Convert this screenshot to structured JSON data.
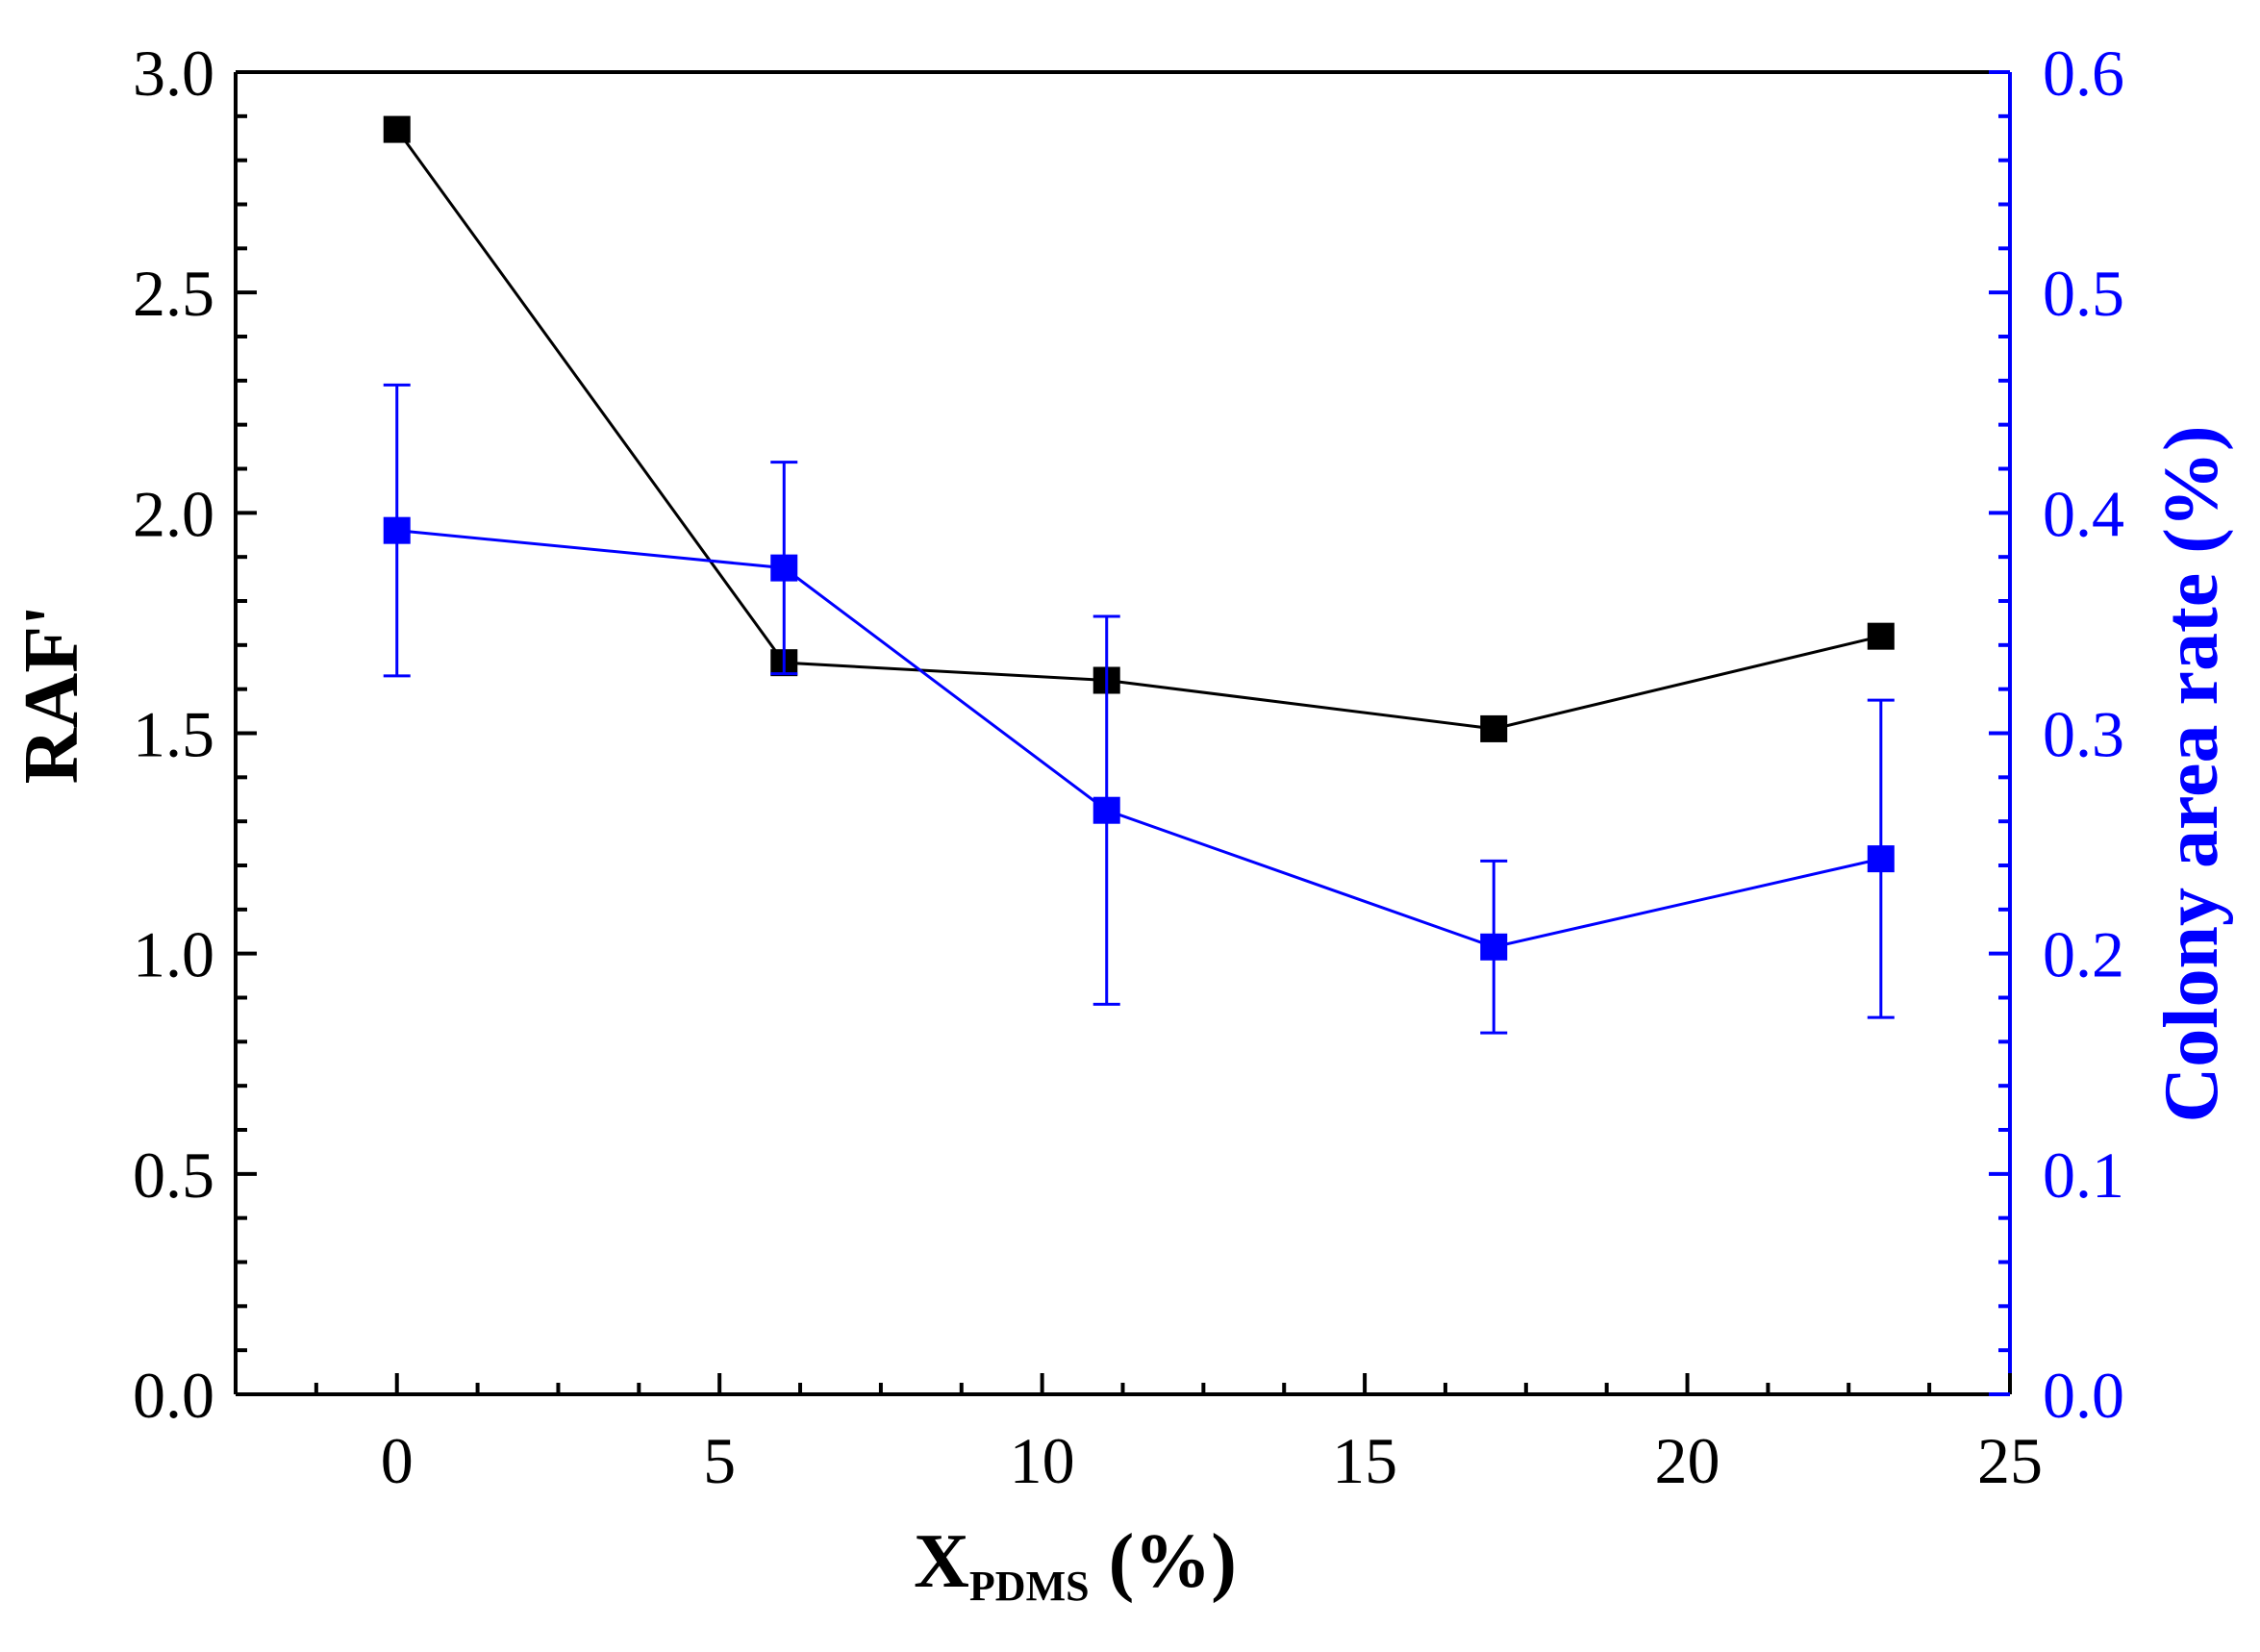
{
  "chart_data": {
    "type": "line",
    "x": [
      0,
      6,
      11,
      17,
      23
    ],
    "xlabel_main": "X",
    "xlabel_sub": "PDMS",
    "xlabel_unit": " (%)",
    "ylabel_left": "RAF'",
    "ylabel_right": "Colony area rate (%)",
    "xlim": [
      -2.5,
      25
    ],
    "ylim_left": [
      0,
      3.0
    ],
    "ylim_right": [
      0,
      0.6
    ],
    "x_ticks": [
      "0",
      "5",
      "10",
      "15",
      "20",
      "25"
    ],
    "y_left_ticks": [
      "0.0",
      "0.5",
      "1.0",
      "1.5",
      "2.0",
      "2.5",
      "3.0"
    ],
    "y_right_ticks": [
      "0.0",
      "0.1",
      "0.2",
      "0.3",
      "0.4",
      "0.5",
      "0.6"
    ],
    "series": [
      {
        "axis": "left",
        "color": "#000000",
        "marker": "square",
        "values": [
          2.87,
          1.66,
          1.62,
          1.51,
          1.72
        ]
      },
      {
        "axis": "right",
        "color": "#0000ff",
        "marker": "square",
        "values": [
          0.392,
          0.375,
          0.265,
          0.203,
          0.243
        ],
        "error": [
          0.066,
          0.048,
          0.088,
          0.039,
          0.072
        ]
      }
    ],
    "grid": false,
    "legend": "none",
    "colors": {
      "axis_left": "#000000",
      "axis_right": "#0000ff",
      "frame": "#000000"
    }
  }
}
